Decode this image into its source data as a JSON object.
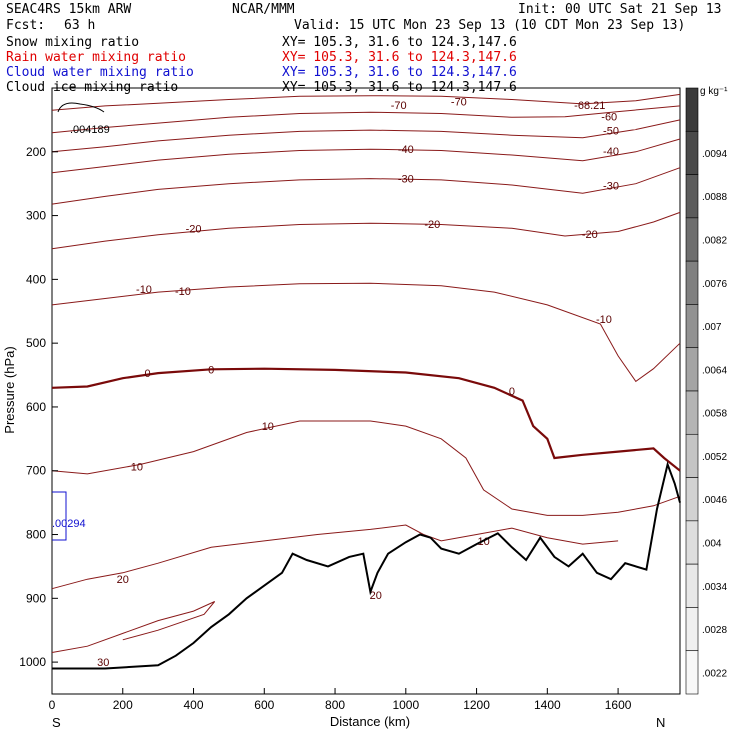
{
  "header": {
    "model": "SEAC4RS 15km ARW",
    "org": "NCAR/MMM",
    "init": "Init: 00 UTC Sat 21 Sep 13",
    "fcst_label": "Fcst:",
    "fcst_value": "63 h",
    "valid": "Valid: 15 UTC Mon 23 Sep 13 (10 CDT Mon 23 Sep 13)",
    "fields": [
      {
        "name": "Snow mixing ratio",
        "xy": "XY= 105.3, 31.6 to 124.3,147.6",
        "color": "#000000"
      },
      {
        "name": "Rain water mixing ratio",
        "xy": "XY= 105.3, 31.6 to 124.3,147.6",
        "color": "#e00000"
      },
      {
        "name": "Cloud water mixing ratio",
        "xy": "XY= 105.3, 31.6 to 124.3,147.6",
        "color": "#1010d0"
      },
      {
        "name": "Cloud ice mixing ratio",
        "xy": "XY= 105.3, 31.6 to 124.3,147.6",
        "color": "#000000"
      }
    ]
  },
  "colorbar": {
    "unit": "g kg⁻¹",
    "ticks": [
      "",
      ".0094",
      ".0088",
      ".0082",
      ".0076",
      ".007",
      ".0064",
      ".0058",
      ".0052",
      ".0046",
      ".004",
      ".0034",
      ".0028",
      ".0022"
    ],
    "colors": [
      "#3a3a3a",
      "#4a4a4a",
      "#5c5c5c",
      "#6e6e6e",
      "#808080",
      "#929292",
      "#a4a4a4",
      "#b4b4b4",
      "#c4c4c4",
      "#d2d2d2",
      "#dedede",
      "#e8e8e8",
      "#f0f0f0",
      "#f8f8f8"
    ]
  },
  "chart_data": {
    "type": "contour",
    "xlabel": "Distance (km)",
    "ylabel": "Pressure (hPa)",
    "xlim": [
      0,
      1775
    ],
    "ylim": [
      1050,
      100
    ],
    "x_ticks": [
      0,
      200,
      400,
      600,
      800,
      1000,
      1200,
      1400,
      1600
    ],
    "y_ticks": [
      200,
      300,
      400,
      500,
      600,
      700,
      800,
      900,
      1000
    ],
    "x_end_labels": {
      "left": "S",
      "right": "N"
    },
    "temperature_contours_C": [
      {
        "level": -70,
        "points": [
          [
            0,
            135
          ],
          [
            150,
            128
          ],
          [
            300,
            124
          ],
          [
            500,
            118
          ],
          [
            700,
            113
          ],
          [
            900,
            112
          ],
          [
            1100,
            113
          ],
          [
            1300,
            118
          ],
          [
            1500,
            125
          ],
          [
            1650,
            120
          ],
          [
            1775,
            110
          ]
        ]
      },
      {
        "level": -60,
        "points": [
          [
            0,
            170
          ],
          [
            150,
            162
          ],
          [
            300,
            155
          ],
          [
            500,
            146
          ],
          [
            700,
            140
          ],
          [
            900,
            138
          ],
          [
            1100,
            140
          ],
          [
            1300,
            146
          ],
          [
            1450,
            145
          ],
          [
            1600,
            137
          ],
          [
            1775,
            128
          ]
        ]
      },
      {
        "level": -50,
        "points": [
          [
            0,
            200
          ],
          [
            150,
            192
          ],
          [
            300,
            183
          ],
          [
            500,
            174
          ],
          [
            700,
            168
          ],
          [
            900,
            166
          ],
          [
            1100,
            168
          ],
          [
            1300,
            174
          ],
          [
            1500,
            178
          ],
          [
            1650,
            165
          ],
          [
            1775,
            150
          ]
        ]
      },
      {
        "level": -40,
        "points": [
          [
            0,
            233
          ],
          [
            150,
            223
          ],
          [
            300,
            213
          ],
          [
            500,
            204
          ],
          [
            700,
            198
          ],
          [
            900,
            196
          ],
          [
            1100,
            198
          ],
          [
            1300,
            205
          ],
          [
            1500,
            214
          ],
          [
            1650,
            200
          ],
          [
            1775,
            180
          ]
        ]
      },
      {
        "level": -30,
        "points": [
          [
            0,
            282
          ],
          [
            150,
            270
          ],
          [
            300,
            259
          ],
          [
            500,
            250
          ],
          [
            700,
            244
          ],
          [
            900,
            242
          ],
          [
            1100,
            244
          ],
          [
            1300,
            252
          ],
          [
            1500,
            265
          ],
          [
            1650,
            250
          ],
          [
            1775,
            225
          ]
        ]
      },
      {
        "level": -20,
        "points": [
          [
            0,
            352
          ],
          [
            150,
            340
          ],
          [
            300,
            330
          ],
          [
            500,
            320
          ],
          [
            700,
            314
          ],
          [
            900,
            312
          ],
          [
            1100,
            314
          ],
          [
            1300,
            320
          ],
          [
            1450,
            332
          ],
          [
            1600,
            325
          ],
          [
            1700,
            310
          ],
          [
            1775,
            295
          ]
        ]
      },
      {
        "level": -10,
        "points": [
          [
            0,
            440
          ],
          [
            150,
            430
          ],
          [
            300,
            420
          ],
          [
            500,
            412
          ],
          [
            700,
            407
          ],
          [
            900,
            406
          ],
          [
            1100,
            410
          ],
          [
            1250,
            420
          ],
          [
            1400,
            440
          ],
          [
            1550,
            470
          ],
          [
            1600,
            520
          ],
          [
            1650,
            560
          ],
          [
            1700,
            540
          ],
          [
            1775,
            500
          ]
        ]
      },
      {
        "level": 0,
        "points": [
          [
            0,
            570
          ],
          [
            100,
            568
          ],
          [
            200,
            555
          ],
          [
            300,
            547
          ],
          [
            450,
            541
          ],
          [
            600,
            540
          ],
          [
            800,
            542
          ],
          [
            1000,
            546
          ],
          [
            1150,
            555
          ],
          [
            1250,
            570
          ],
          [
            1330,
            590
          ],
          [
            1360,
            630
          ],
          [
            1400,
            650
          ],
          [
            1420,
            680
          ],
          [
            1500,
            675
          ],
          [
            1600,
            670
          ],
          [
            1700,
            665
          ],
          [
            1730,
            680
          ],
          [
            1775,
            700
          ]
        ]
      },
      {
        "level": 10,
        "points": [
          [
            0,
            700
          ],
          [
            100,
            705
          ],
          [
            250,
            690
          ],
          [
            400,
            670
          ],
          [
            550,
            640
          ],
          [
            700,
            622
          ],
          [
            900,
            622
          ],
          [
            1000,
            630
          ],
          [
            1100,
            650
          ],
          [
            1170,
            680
          ],
          [
            1220,
            730
          ],
          [
            1300,
            760
          ],
          [
            1400,
            770
          ],
          [
            1500,
            770
          ],
          [
            1600,
            765
          ],
          [
            1700,
            755
          ],
          [
            1775,
            740
          ]
        ]
      },
      {
        "level": 20,
        "points": [
          [
            0,
            885
          ],
          [
            100,
            870
          ],
          [
            200,
            860
          ],
          [
            300,
            845
          ],
          [
            450,
            820
          ],
          [
            600,
            810
          ],
          [
            750,
            800
          ],
          [
            900,
            792
          ],
          [
            1000,
            785
          ],
          [
            1050,
            800
          ],
          [
            1100,
            810
          ],
          [
            1200,
            800
          ],
          [
            1300,
            790
          ],
          [
            1400,
            805
          ],
          [
            1500,
            815
          ],
          [
            1600,
            810
          ]
        ]
      },
      {
        "level": 30,
        "points": [
          [
            0,
            985
          ],
          [
            100,
            975
          ],
          [
            200,
            955
          ],
          [
            300,
            935
          ],
          [
            400,
            920
          ],
          [
            460,
            905
          ],
          [
            430,
            925
          ],
          [
            300,
            950
          ],
          [
            200,
            965
          ]
        ]
      }
    ],
    "terrain_profile": [
      [
        0,
        1010
      ],
      [
        150,
        1010
      ],
      [
        300,
        1005
      ],
      [
        350,
        990
      ],
      [
        400,
        970
      ],
      [
        450,
        945
      ],
      [
        500,
        925
      ],
      [
        550,
        900
      ],
      [
        600,
        880
      ],
      [
        650,
        860
      ],
      [
        680,
        830
      ],
      [
        720,
        840
      ],
      [
        780,
        850
      ],
      [
        840,
        835
      ],
      [
        880,
        830
      ],
      [
        900,
        890
      ],
      [
        920,
        860
      ],
      [
        950,
        830
      ],
      [
        1000,
        812
      ],
      [
        1040,
        800
      ],
      [
        1070,
        805
      ],
      [
        1100,
        822
      ],
      [
        1150,
        830
      ],
      [
        1200,
        815
      ],
      [
        1260,
        798
      ],
      [
        1300,
        820
      ],
      [
        1340,
        840
      ],
      [
        1380,
        805
      ],
      [
        1420,
        835
      ],
      [
        1460,
        850
      ],
      [
        1500,
        830
      ],
      [
        1540,
        860
      ],
      [
        1580,
        870
      ],
      [
        1620,
        845
      ],
      [
        1680,
        855
      ],
      [
        1710,
        760
      ],
      [
        1740,
        690
      ],
      [
        1760,
        720
      ],
      [
        1775,
        750
      ]
    ],
    "labels": [
      {
        "text": "-70",
        "x": 980,
        "y": 127
      },
      {
        "text": "-70",
        "x": 1150,
        "y": 121
      },
      {
        "text": "-68.21",
        "x": 1520,
        "y": 127
      },
      {
        "text": "-60",
        "x": 1575,
        "y": 145
      },
      {
        "text": "-50",
        "x": 1580,
        "y": 167
      },
      {
        "text": "-40",
        "x": 1000,
        "y": 196
      },
      {
        "text": "-40",
        "x": 1580,
        "y": 199
      },
      {
        "text": "-30",
        "x": 1000,
        "y": 242
      },
      {
        "text": "-30",
        "x": 1580,
        "y": 253
      },
      {
        "text": "-20",
        "x": 400,
        "y": 320
      },
      {
        "text": "-20",
        "x": 1075,
        "y": 313
      },
      {
        "text": "-20",
        "x": 1520,
        "y": 329
      },
      {
        "text": "-10",
        "x": 260,
        "y": 415
      },
      {
        "text": "-10",
        "x": 370,
        "y": 418
      },
      {
        "text": "-10",
        "x": 1560,
        "y": 462
      },
      {
        "text": "0",
        "x": 270,
        "y": 547
      },
      {
        "text": "0",
        "x": 450,
        "y": 541
      },
      {
        "text": "0",
        "x": 1300,
        "y": 575
      },
      {
        "text": "10",
        "x": 240,
        "y": 693
      },
      {
        "text": "10",
        "x": 610,
        "y": 630
      },
      {
        "text": "10",
        "x": 1220,
        "y": 810
      },
      {
        "text": "20",
        "x": 200,
        "y": 870
      },
      {
        "text": "20",
        "x": 915,
        "y": 895
      },
      {
        "text": "30",
        "x": 145,
        "y": 1000
      }
    ],
    "snow_contour": {
      "label": ".004189",
      "x": 110,
      "y": 140
    },
    "cloud_water_contour": {
      "label": ".00294",
      "x": 30,
      "y": 780
    }
  }
}
